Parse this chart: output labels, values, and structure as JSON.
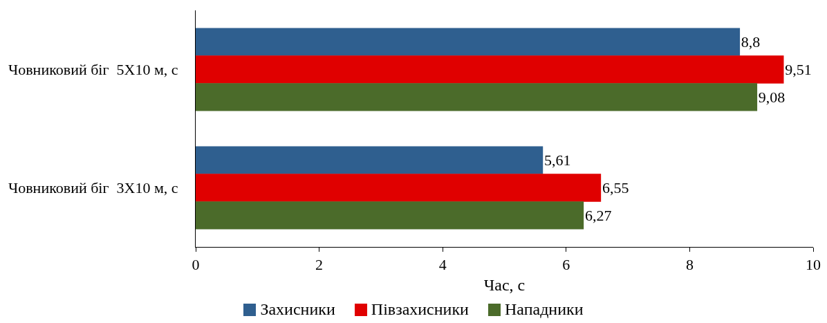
{
  "chart_data": {
    "type": "bar",
    "orientation": "horizontal",
    "xlabel": "Час, с",
    "categories": [
      "Човниковий біг  5Х10 м, с",
      "Човниковий біг  3Х10 м, с"
    ],
    "series": [
      {
        "name": "Захисники",
        "color": "#2f5f8f",
        "values": [
          8.8,
          5.61
        ],
        "value_labels": [
          "8,8",
          "5,61"
        ]
      },
      {
        "name": "Півзахисники",
        "color": "#e00000",
        "values": [
          9.51,
          6.55
        ],
        "value_labels": [
          "9,51",
          "6,55"
        ]
      },
      {
        "name": "Нападники",
        "color": "#4b6b2a",
        "values": [
          9.08,
          6.27
        ],
        "value_labels": [
          "9,08",
          "6,27"
        ]
      }
    ],
    "xlim": [
      0,
      10
    ],
    "xticks": [
      0,
      2,
      4,
      6,
      8,
      10
    ],
    "grid": false,
    "legend": "bottom"
  }
}
